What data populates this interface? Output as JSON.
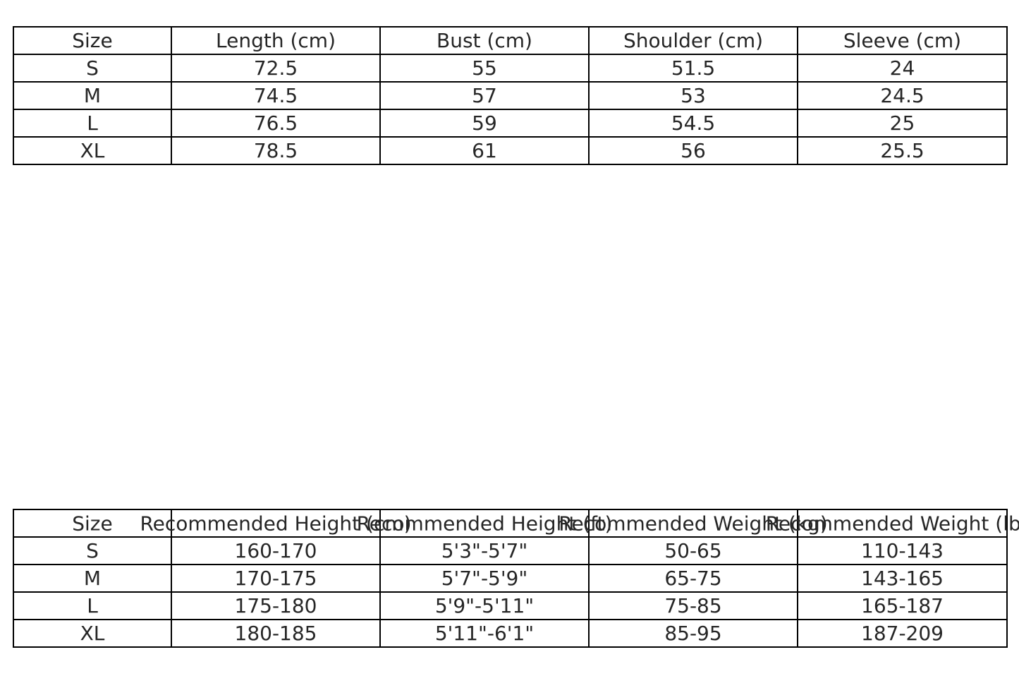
{
  "colors": {
    "page_background": "#ffffff",
    "table_border": "#000000",
    "table_text": "#262626"
  },
  "measurements_table": {
    "headers": [
      "Size",
      "Length (cm)",
      "Bust (cm)",
      "Shoulder (cm)",
      "Sleeve (cm)"
    ],
    "rows": [
      [
        "S",
        "72.5",
        "55",
        "51.5",
        "24"
      ],
      [
        "M",
        "74.5",
        "57",
        "53",
        "24.5"
      ],
      [
        "L",
        "76.5",
        "59",
        "54.5",
        "25"
      ],
      [
        "XL",
        "78.5",
        "61",
        "56",
        "25.5"
      ]
    ]
  },
  "recommendations_table": {
    "headers": [
      "Size",
      "Recommended Height (cm)",
      "Recommended Height (ft)",
      "Recommended Weight (kg)",
      "Recommended Weight (lbs)"
    ],
    "rows": [
      [
        "S",
        "160-170",
        "5'3\"-5'7\"",
        "50-65",
        "110-143"
      ],
      [
        "M",
        "170-175",
        "5'7\"-5'9\"",
        "65-75",
        "143-165"
      ],
      [
        "L",
        "175-180",
        "5'9\"-5'11\"",
        "75-85",
        "165-187"
      ],
      [
        "XL",
        "180-185",
        "5'11\"-6'1\"",
        "85-95",
        "187-209"
      ]
    ]
  }
}
